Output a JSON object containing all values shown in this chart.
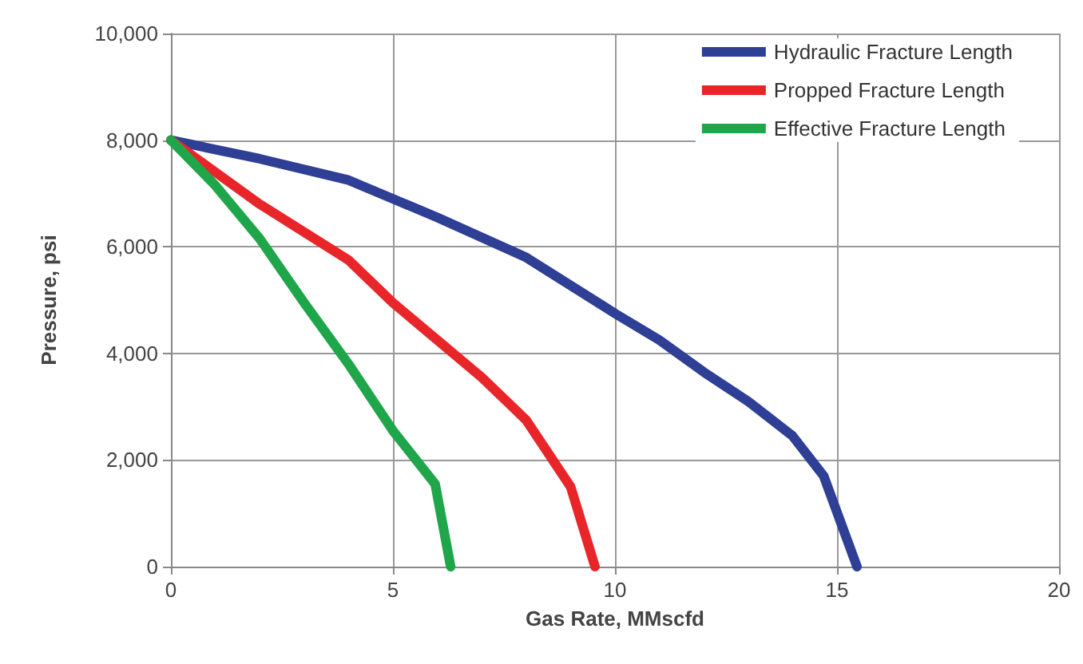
{
  "chart_data": {
    "type": "line",
    "xlabel": "Gas Rate, MMscfd",
    "ylabel": "Pressure, psi",
    "xlim": [
      0,
      20
    ],
    "xticks": [
      0,
      5,
      10,
      15,
      20
    ],
    "ylim": [
      0,
      10000
    ],
    "yticks": [
      {
        "value": 0,
        "label": "0"
      },
      {
        "value": 2000,
        "label": "2,000"
      },
      {
        "value": 4000,
        "label": "4,000"
      },
      {
        "value": 6000,
        "label": "6,000"
      },
      {
        "value": 8000,
        "label": "8,000"
      },
      {
        "value": 10000,
        "label": "10,000"
      }
    ],
    "grid": true,
    "legend": "top right",
    "marker": "none",
    "line_style": "solid",
    "series": [
      {
        "name": "Hydraulic Fracture Length",
        "color": "#2e3f95",
        "x": [
          0,
          2,
          4,
          6,
          8,
          10,
          11,
          12,
          13,
          14,
          14.7,
          15.45
        ],
        "values": [
          8000,
          7650,
          7250,
          6550,
          5800,
          4750,
          4250,
          3650,
          3100,
          2450,
          1700,
          0
        ]
      },
      {
        "name": "Propped Fracture Length",
        "color": "#e8262a",
        "x": [
          0,
          2,
          4,
          5,
          6,
          7,
          8,
          9,
          9.55
        ],
        "values": [
          8000,
          6800,
          5750,
          4950,
          4250,
          3550,
          2750,
          1500,
          0
        ]
      },
      {
        "name": "Effective Fracture Length",
        "color": "#1fa64a",
        "x": [
          0,
          1,
          2,
          3,
          4,
          5,
          5.95,
          6.3
        ],
        "values": [
          8000,
          7150,
          6150,
          4950,
          3800,
          2550,
          1550,
          0
        ]
      }
    ]
  }
}
